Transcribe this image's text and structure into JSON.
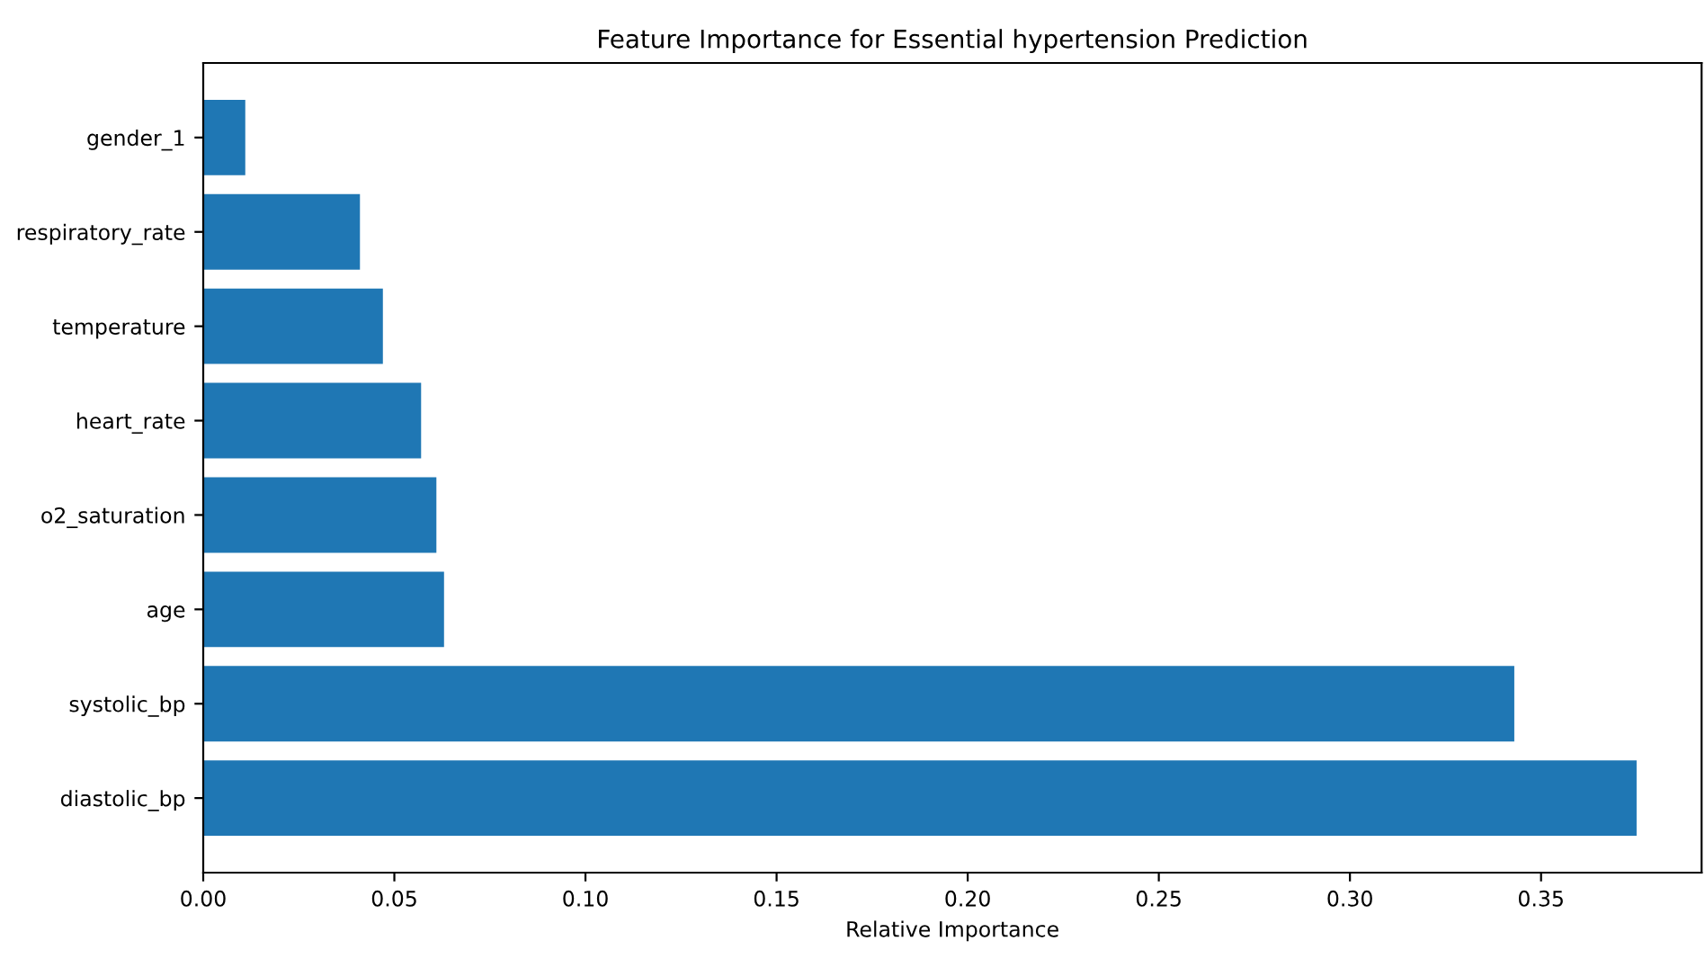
{
  "chart_data": {
    "type": "bar",
    "orientation": "horizontal",
    "title": "Feature Importance for Essential hypertension Prediction",
    "xlabel": "Relative Importance",
    "categories": [
      "gender_1",
      "respiratory_rate",
      "temperature",
      "heart_rate",
      "o2_saturation",
      "age",
      "systolic_bp",
      "diastolic_bp"
    ],
    "values": [
      0.011,
      0.041,
      0.047,
      0.057,
      0.061,
      0.063,
      0.343,
      0.375
    ],
    "color": "#1f77b4",
    "xlim": [
      0,
      0.392
    ],
    "xticks": [
      {
        "value": 0,
        "label": "0.00"
      },
      {
        "value": 0.05,
        "label": "0.05"
      },
      {
        "value": 0.1,
        "label": "0.10"
      },
      {
        "value": 0.15,
        "label": "0.15"
      },
      {
        "value": 0.2,
        "label": "0.20"
      },
      {
        "value": 0.25,
        "label": "0.25"
      },
      {
        "value": 0.3,
        "label": "0.30"
      },
      {
        "value": 0.35,
        "label": "0.35"
      }
    ],
    "grid": false
  }
}
